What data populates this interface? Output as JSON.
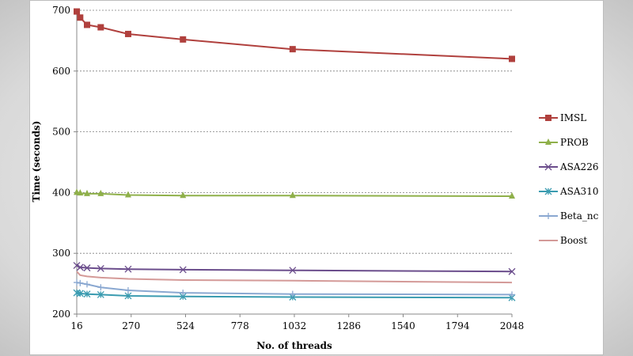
{
  "chart_data": {
    "type": "line",
    "title": "",
    "xlabel": "No. of threads",
    "ylabel": "Time (seconds)",
    "x_ticks": [
      16,
      270,
      524,
      778,
      1032,
      1286,
      1540,
      1794,
      2048
    ],
    "y_ticks": [
      200,
      300,
      400,
      500,
      600,
      700
    ],
    "xlim": [
      16,
      2048
    ],
    "ylim": [
      200,
      700
    ],
    "grid": "horizontal",
    "legend_position": "right",
    "series": [
      {
        "name": "IMSL",
        "color": "#b0403d",
        "marker": "square",
        "x": [
          16,
          32,
          64,
          128,
          256,
          512,
          1024,
          2048
        ],
        "y": [
          698,
          688,
          676,
          672,
          661,
          652,
          636,
          620
        ]
      },
      {
        "name": "PROB",
        "color": "#8fb04a",
        "marker": "triangle",
        "x": [
          16,
          32,
          64,
          128,
          256,
          512,
          1024,
          2048
        ],
        "y": [
          400,
          399,
          398,
          398,
          396,
          395,
          395,
          394
        ]
      },
      {
        "name": "ASA226",
        "color": "#6b4d8c",
        "marker": "x",
        "x": [
          16,
          32,
          64,
          128,
          256,
          512,
          1024,
          2048
        ],
        "y": [
          280,
          277,
          276,
          275,
          274,
          273,
          272,
          270
        ]
      },
      {
        "name": "ASA310",
        "color": "#3a9bb0",
        "marker": "star",
        "x": [
          16,
          32,
          64,
          128,
          256,
          512,
          1024,
          2048
        ],
        "y": [
          235,
          234,
          233,
          232,
          230,
          229,
          228,
          227
        ]
      },
      {
        "name": "Beta_nc",
        "color": "#8aa8d1",
        "marker": "plus",
        "x": [
          16,
          32,
          64,
          128,
          256,
          512,
          1024,
          2048
        ],
        "y": [
          252,
          251,
          249,
          244,
          239,
          235,
          233,
          232
        ]
      },
      {
        "name": "Boost",
        "color": "#d49a98",
        "marker": "none",
        "x": [
          16,
          32,
          64,
          128,
          256,
          512,
          1024,
          2048
        ],
        "y": [
          270,
          264,
          262,
          260,
          258,
          256,
          255,
          252
        ]
      }
    ]
  }
}
